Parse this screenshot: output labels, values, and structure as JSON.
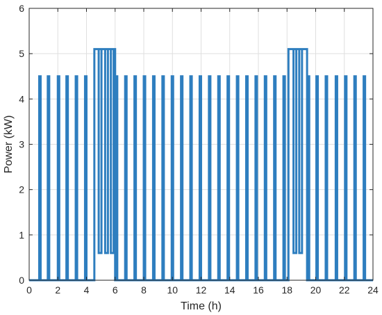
{
  "chart_data": {
    "type": "line",
    "xlabel": "Time (h)",
    "ylabel": "Power (kW)",
    "xlim": [
      0,
      24
    ],
    "ylim": [
      0,
      6
    ],
    "x_ticks": [
      0,
      2,
      4,
      6,
      8,
      10,
      12,
      14,
      16,
      18,
      20,
      22,
      24
    ],
    "y_ticks": [
      0,
      1,
      2,
      3,
      4,
      5,
      6
    ],
    "grid": true,
    "line_color": "#2E7EBF",
    "series": [
      {
        "pulses": [
          {
            "start": 0.7,
            "end": 0.8,
            "high": 4.5,
            "low": 0
          },
          {
            "start": 1.3,
            "end": 1.4,
            "high": 4.5,
            "low": 0
          },
          {
            "start": 2.0,
            "end": 2.1,
            "high": 4.5,
            "low": 0
          },
          {
            "start": 2.6,
            "end": 2.7,
            "high": 4.5,
            "low": 0
          },
          {
            "start": 3.25,
            "end": 3.35,
            "high": 4.5,
            "low": 0
          },
          {
            "start": 3.9,
            "end": 4.0,
            "high": 4.5,
            "low": 0
          },
          {
            "start": 4.55,
            "end": 6.0,
            "high": 5.1,
            "low": 0
          },
          {
            "start": 6.05,
            "end": 6.15,
            "high": 4.5,
            "low": 0
          },
          {
            "start": 6.7,
            "end": 6.8,
            "high": 4.5,
            "low": 0
          },
          {
            "start": 7.35,
            "end": 7.45,
            "high": 4.5,
            "low": 0
          },
          {
            "start": 8.0,
            "end": 8.1,
            "high": 4.5,
            "low": 0
          },
          {
            "start": 8.65,
            "end": 8.75,
            "high": 4.5,
            "low": 0
          },
          {
            "start": 9.3,
            "end": 9.4,
            "high": 4.5,
            "low": 0
          },
          {
            "start": 9.95,
            "end": 10.05,
            "high": 4.5,
            "low": 0
          },
          {
            "start": 10.6,
            "end": 10.7,
            "high": 4.5,
            "low": 0
          },
          {
            "start": 11.25,
            "end": 11.35,
            "high": 4.5,
            "low": 0
          },
          {
            "start": 11.9,
            "end": 12.0,
            "high": 4.5,
            "low": 0
          },
          {
            "start": 12.55,
            "end": 12.65,
            "high": 4.5,
            "low": 0
          },
          {
            "start": 13.2,
            "end": 13.3,
            "high": 4.5,
            "low": 0
          },
          {
            "start": 13.85,
            "end": 13.95,
            "high": 4.5,
            "low": 0
          },
          {
            "start": 14.5,
            "end": 14.6,
            "high": 4.5,
            "low": 0
          },
          {
            "start": 15.15,
            "end": 15.25,
            "high": 4.5,
            "low": 0
          },
          {
            "start": 15.8,
            "end": 15.9,
            "high": 4.5,
            "low": 0
          },
          {
            "start": 16.45,
            "end": 16.55,
            "high": 4.5,
            "low": 0
          },
          {
            "start": 17.1,
            "end": 17.2,
            "high": 4.5,
            "low": 0
          },
          {
            "start": 17.75,
            "end": 17.85,
            "high": 4.5,
            "low": 0
          },
          {
            "start": 18.1,
            "end": 19.4,
            "high": 5.1,
            "low": 0
          },
          {
            "start": 19.45,
            "end": 19.55,
            "high": 4.5,
            "low": 0
          },
          {
            "start": 20.05,
            "end": 20.15,
            "high": 4.5,
            "low": 0
          },
          {
            "start": 20.7,
            "end": 20.8,
            "high": 4.5,
            "low": 0
          },
          {
            "start": 21.4,
            "end": 21.5,
            "high": 4.5,
            "low": 0
          },
          {
            "start": 22.05,
            "end": 22.15,
            "high": 4.5,
            "low": 0
          },
          {
            "start": 22.7,
            "end": 22.8,
            "high": 4.5,
            "low": 0
          },
          {
            "start": 23.35,
            "end": 23.45,
            "high": 4.5,
            "low": 0
          }
        ],
        "plateau_dips": [
          {
            "x": 4.95,
            "low": 0.6
          },
          {
            "x": 5.4,
            "low": 0.6
          },
          {
            "x": 5.8,
            "low": 0.6
          },
          {
            "x": 18.55,
            "low": 0.6
          },
          {
            "x": 18.95,
            "low": 0.6
          }
        ]
      }
    ]
  }
}
